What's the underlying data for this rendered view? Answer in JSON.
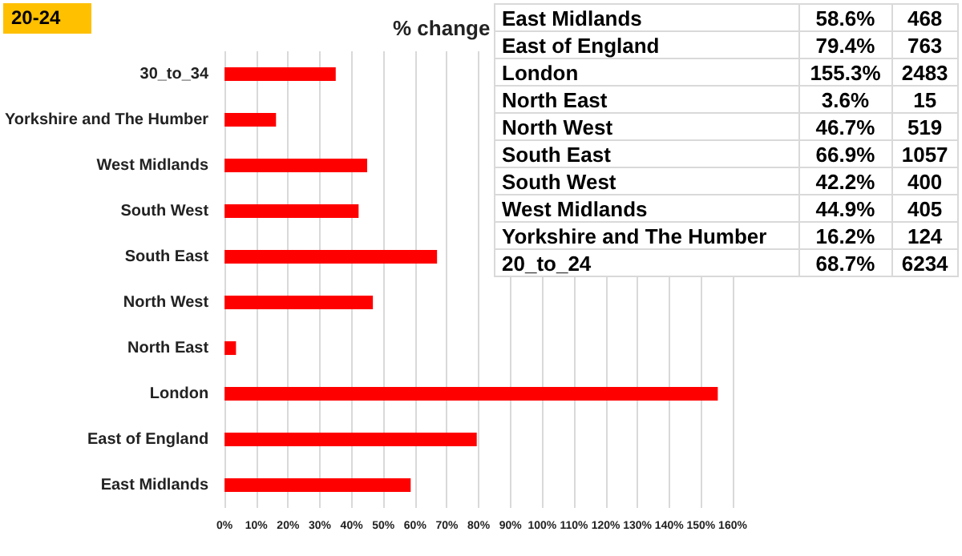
{
  "chart_data": [
    {
      "type": "bar",
      "orientation": "horizontal",
      "title": "% change",
      "annotations": [
        "20-24"
      ],
      "categories": [
        "30_to_34",
        "Yorkshire and The Humber",
        "West Midlands",
        "South West",
        "South East",
        "North West",
        "North East",
        "London",
        "East of England",
        "East Midlands"
      ],
      "values": [
        35,
        16.2,
        44.9,
        42.2,
        66.9,
        46.7,
        3.6,
        155.3,
        79.4,
        58.6
      ],
      "color": "#ff0000",
      "xlim": [
        0,
        160
      ],
      "xticks": [
        {
          "value": 0,
          "label": "0%"
        },
        {
          "value": 10,
          "label": "10%"
        },
        {
          "value": 20,
          "label": "20%"
        },
        {
          "value": 30,
          "label": "30%"
        },
        {
          "value": 40,
          "label": "40%"
        },
        {
          "value": 50,
          "label": "50%"
        },
        {
          "value": 60,
          "label": "60%"
        },
        {
          "value": 70,
          "label": "70%"
        },
        {
          "value": 80,
          "label": "80%"
        },
        {
          "value": 90,
          "label": "90%"
        },
        {
          "value": 100,
          "label": "100%"
        },
        {
          "value": 110,
          "label": "110%"
        },
        {
          "value": 120,
          "label": "120%"
        },
        {
          "value": 130,
          "label": "130%"
        },
        {
          "value": 140,
          "label": "140%"
        },
        {
          "value": 150,
          "label": "150%"
        },
        {
          "value": 160,
          "label": "160%"
        }
      ],
      "grid": "x"
    },
    {
      "type": "other",
      "categories": [
        "East Midlands",
        "East of England",
        "London",
        "North East",
        "North West",
        "South East",
        "South West",
        "West Midlands",
        "Yorkshire and The Humber",
        "20_to_24"
      ],
      "series": [
        {
          "values": [
            58.6,
            79.4,
            155.3,
            3.6,
            46.7,
            66.9,
            42.2,
            44.9,
            16.2,
            68.7
          ],
          "value_labels": [
            "58.6%",
            "79.4%",
            "155.3%",
            "3.6%",
            "46.7%",
            "66.9%",
            "42.2%",
            "44.9%",
            "16.2%",
            "68.7%"
          ]
        },
        {
          "values": [
            468,
            763,
            2483,
            15,
            519,
            1057,
            400,
            405,
            124,
            6234
          ],
          "data_labels": true
        }
      ]
    }
  ]
}
